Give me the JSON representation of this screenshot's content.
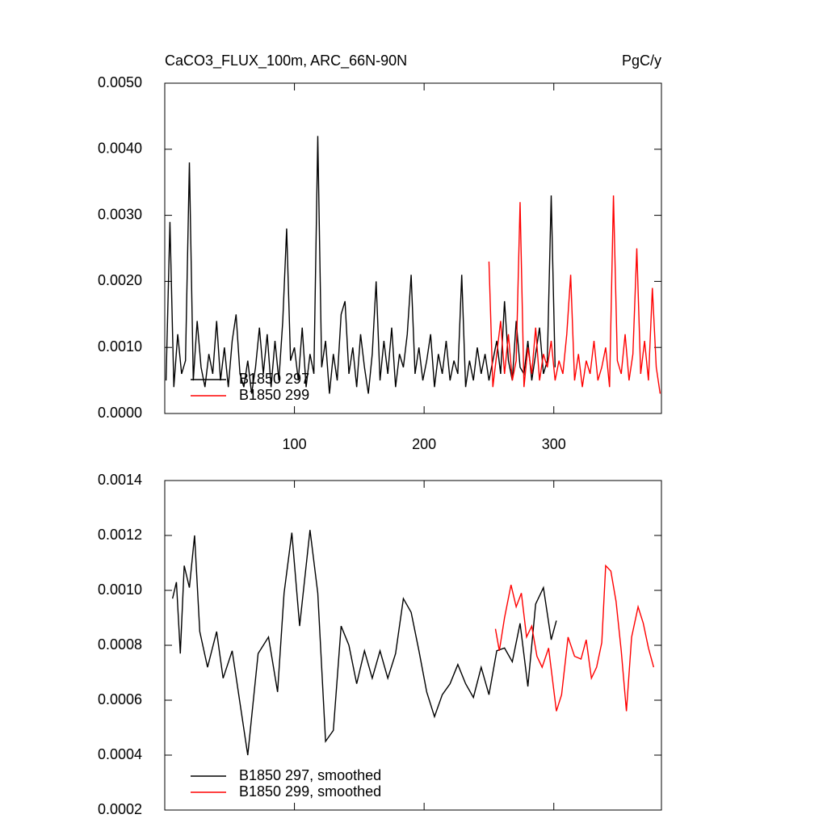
{
  "chart_data": [
    {
      "type": "line",
      "title": "CaCO3_FLUX_100m, ARC_66N-90N",
      "units": "PgC/y",
      "xlim": [
        0,
        383
      ],
      "xticks": [
        100,
        200,
        300
      ],
      "ylim": [
        0,
        0.005
      ],
      "yticks": [
        {
          "value": 0,
          "label": "0.0000"
        },
        {
          "value": 0.001,
          "label": "0.0010"
        },
        {
          "value": 0.002,
          "label": "0.0020"
        },
        {
          "value": 0.003,
          "label": "0.0030"
        },
        {
          "value": 0.004,
          "label": "0.0040"
        },
        {
          "value": 0.005,
          "label": "0.0050"
        }
      ],
      "legend": "lower left",
      "series": [
        {
          "name": "B1850 297",
          "color": "#000000",
          "x": [
            1,
            4,
            7,
            10,
            13,
            16,
            19,
            22,
            25,
            28,
            31,
            34,
            37,
            40,
            43,
            46,
            49,
            52,
            55,
            58,
            61,
            64,
            67,
            70,
            73,
            76,
            79,
            82,
            85,
            88,
            91,
            94,
            97,
            100,
            103,
            106,
            109,
            112,
            115,
            118,
            121,
            124,
            127,
            130,
            133,
            136,
            139,
            142,
            145,
            148,
            151,
            154,
            157,
            160,
            163,
            166,
            169,
            172,
            175,
            178,
            181,
            184,
            187,
            190,
            193,
            196,
            199,
            202,
            205,
            208,
            211,
            214,
            217,
            220,
            223,
            226,
            229,
            232,
            235,
            238,
            241,
            244,
            247,
            250,
            253,
            256,
            259,
            262,
            265,
            268,
            271,
            274,
            277,
            280,
            283,
            286,
            289,
            292,
            295,
            298,
            301
          ],
          "values": [
            0.0005,
            0.0029,
            0.0004,
            0.0012,
            0.0006,
            0.0008,
            0.0038,
            0.0005,
            0.0014,
            0.0007,
            0.0004,
            0.0009,
            0.0006,
            0.0014,
            0.0005,
            0.001,
            0.0004,
            0.0011,
            0.0015,
            0.0006,
            0.0004,
            0.0008,
            0.0003,
            0.0007,
            0.0013,
            0.0006,
            0.0012,
            0.0004,
            0.0011,
            0.0005,
            0.0014,
            0.0028,
            0.0008,
            0.001,
            0.0005,
            0.0013,
            0.0004,
            0.0009,
            0.0006,
            0.0042,
            0.0007,
            0.0011,
            0.0003,
            0.0009,
            0.0005,
            0.0015,
            0.0017,
            0.0006,
            0.001,
            0.0004,
            0.0012,
            0.0007,
            0.0003,
            0.0009,
            0.002,
            0.0005,
            0.0011,
            0.0006,
            0.0013,
            0.0004,
            0.0009,
            0.0007,
            0.0012,
            0.0021,
            0.0006,
            0.001,
            0.0005,
            0.0008,
            0.0012,
            0.0004,
            0.0009,
            0.0006,
            0.0011,
            0.0005,
            0.0008,
            0.0006,
            0.0021,
            0.0004,
            0.0008,
            0.0005,
            0.001,
            0.0006,
            0.0009,
            0.0005,
            0.0008,
            0.0011,
            0.0006,
            0.0017,
            0.0008,
            0.0005,
            0.0014,
            0.0007,
            0.0006,
            0.0011,
            0.0005,
            0.0009,
            0.0013,
            0.0006,
            0.0008,
            0.0033,
            0.0007
          ]
        },
        {
          "name": "B1850 299",
          "color": "#ff0000",
          "x": [
            250,
            253,
            256,
            259,
            262,
            265,
            268,
            271,
            274,
            277,
            280,
            283,
            286,
            289,
            292,
            295,
            298,
            301,
            304,
            307,
            310,
            313,
            316,
            319,
            322,
            325,
            328,
            331,
            334,
            337,
            340,
            343,
            346,
            349,
            352,
            355,
            358,
            361,
            364,
            367,
            370,
            373,
            376,
            379,
            382
          ],
          "values": [
            0.0023,
            0.0004,
            0.0009,
            0.0014,
            0.0006,
            0.0012,
            0.0005,
            0.0008,
            0.0032,
            0.0004,
            0.001,
            0.0006,
            0.0013,
            0.0005,
            0.0009,
            0.0007,
            0.0011,
            0.0005,
            0.0008,
            0.0006,
            0.0012,
            0.0021,
            0.0005,
            0.0009,
            0.0004,
            0.0008,
            0.0006,
            0.0011,
            0.0005,
            0.0007,
            0.001,
            0.0004,
            0.0033,
            0.0008,
            0.0006,
            0.0012,
            0.0005,
            0.0009,
            0.0025,
            0.0006,
            0.0011,
            0.0005,
            0.0019,
            0.0007,
            0.0003
          ]
        }
      ]
    },
    {
      "type": "line",
      "xlim": [
        0,
        383
      ],
      "xticks": [
        100,
        200,
        300
      ],
      "ylim": [
        0.0002,
        0.0014
      ],
      "yticks": [
        {
          "value": 0.0002,
          "label": "0.0002"
        },
        {
          "value": 0.0004,
          "label": "0.0004"
        },
        {
          "value": 0.0006,
          "label": "0.0006"
        },
        {
          "value": 0.0008,
          "label": "0.0008"
        },
        {
          "value": 0.001,
          "label": "0.0010"
        },
        {
          "value": 0.0012,
          "label": "0.0012"
        },
        {
          "value": 0.0014,
          "label": "0.0014"
        }
      ],
      "legend": "lower left",
      "series": [
        {
          "name": "B1850 297, smoothed",
          "color": "#000000",
          "x": [
            6,
            9,
            12,
            15,
            19,
            23,
            27,
            33,
            40,
            45,
            52,
            58,
            64,
            72,
            80,
            87,
            92,
            98,
            104,
            112,
            118,
            124,
            130,
            136,
            142,
            148,
            154,
            160,
            166,
            172,
            178,
            184,
            190,
            196,
            202,
            208,
            214,
            220,
            226,
            232,
            238,
            244,
            250,
            256,
            262,
            268,
            274,
            280,
            286,
            292,
            298,
            302
          ],
          "values": [
            0.00097,
            0.00103,
            0.00077,
            0.00109,
            0.00101,
            0.0012,
            0.00085,
            0.00072,
            0.00085,
            0.00068,
            0.00078,
            0.00059,
            0.0004,
            0.00077,
            0.00083,
            0.00063,
            0.00099,
            0.00121,
            0.00087,
            0.00122,
            0.00099,
            0.00045,
            0.00049,
            0.00087,
            0.0008,
            0.00066,
            0.00078,
            0.00068,
            0.00078,
            0.00068,
            0.00077,
            0.00097,
            0.00092,
            0.00078,
            0.00063,
            0.00054,
            0.00062,
            0.00066,
            0.00073,
            0.00066,
            0.00061,
            0.00072,
            0.00062,
            0.00078,
            0.00079,
            0.00074,
            0.00088,
            0.00065,
            0.00095,
            0.00101,
            0.00082,
            0.00089
          ]
        },
        {
          "name": "B1850 299, smoothed",
          "color": "#ff0000",
          "x": [
            255,
            258,
            262,
            267,
            271,
            275,
            279,
            283,
            287,
            291,
            296,
            302,
            306,
            311,
            316,
            321,
            325,
            329,
            333,
            337,
            340,
            344,
            348,
            352,
            356,
            360,
            365,
            369,
            373,
            377
          ],
          "values": [
            0.00086,
            0.00078,
            0.0009,
            0.00102,
            0.00094,
            0.00099,
            0.00083,
            0.00087,
            0.00076,
            0.00072,
            0.00079,
            0.00056,
            0.00062,
            0.00083,
            0.00076,
            0.00075,
            0.00082,
            0.00068,
            0.00072,
            0.00081,
            0.00109,
            0.00107,
            0.00096,
            0.00078,
            0.00056,
            0.00083,
            0.00094,
            0.00088,
            0.00079,
            0.00072
          ]
        }
      ]
    }
  ]
}
